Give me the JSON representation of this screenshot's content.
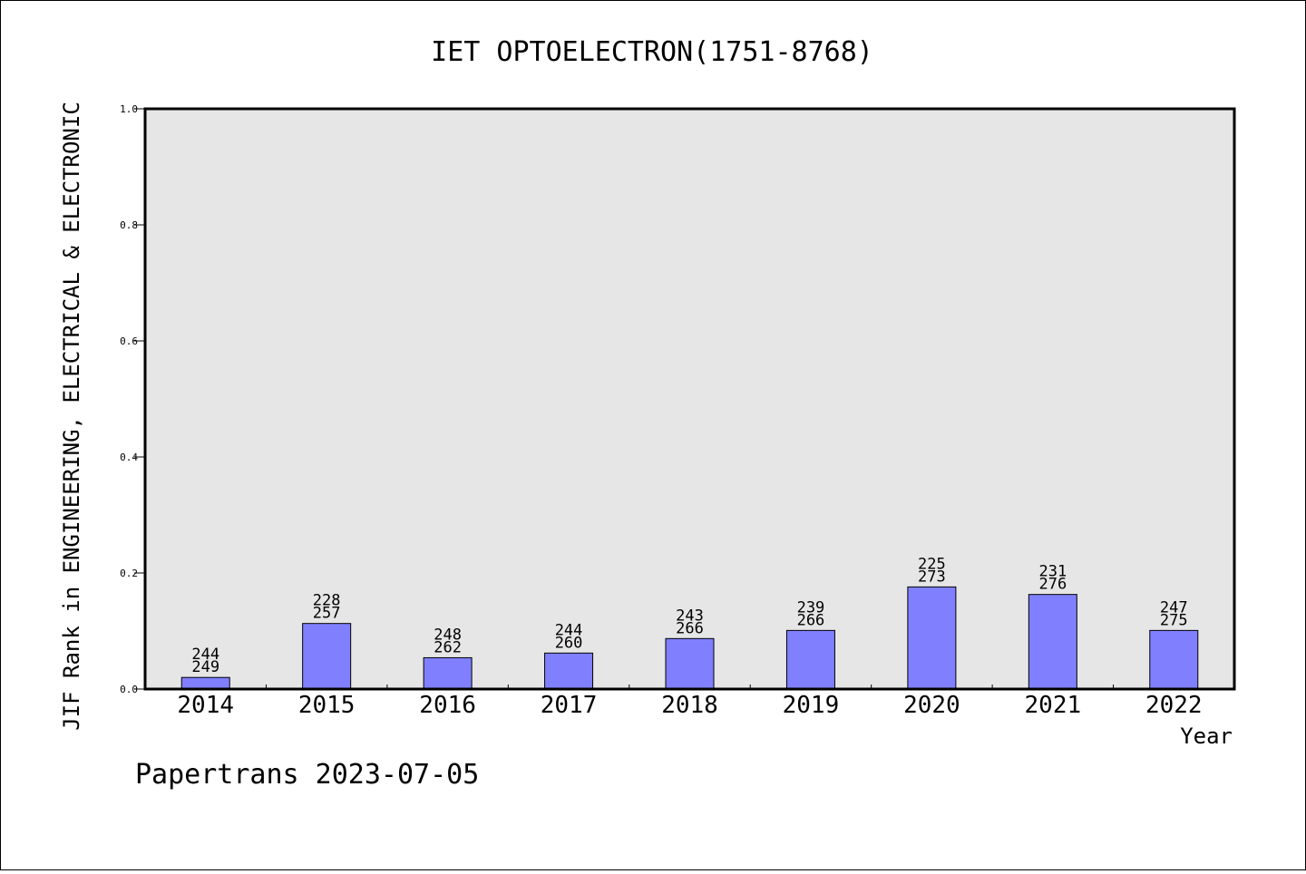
{
  "chart_data": {
    "type": "bar",
    "title": "IET OPTOELECTRON(1751-8768)",
    "xlabel": "Year",
    "ylabel": "JIF Rank in ENGINEERING, ELECTRICAL & ELECTRONIC",
    "ylim": [
      0,
      1.0
    ],
    "yticks": [
      "0.0",
      "0.2",
      "0.4",
      "0.6",
      "0.8",
      "1.0"
    ],
    "categories": [
      "2014",
      "2015",
      "2016",
      "2017",
      "2018",
      "2019",
      "2020",
      "2021",
      "2022"
    ],
    "values": [
      0.02,
      0.113,
      0.054,
      0.062,
      0.087,
      0.101,
      0.176,
      0.163,
      0.101
    ],
    "rank": [
      "244",
      "228",
      "248",
      "244",
      "243",
      "239",
      "225",
      "231",
      "247"
    ],
    "total": [
      "249",
      "257",
      "262",
      "260",
      "266",
      "266",
      "273",
      "276",
      "275"
    ],
    "bar_color": "#8080ff",
    "plot_background": "#e6e6e6",
    "grid": false,
    "legend": "none"
  },
  "footer": "Papertrans 2023-07-05"
}
